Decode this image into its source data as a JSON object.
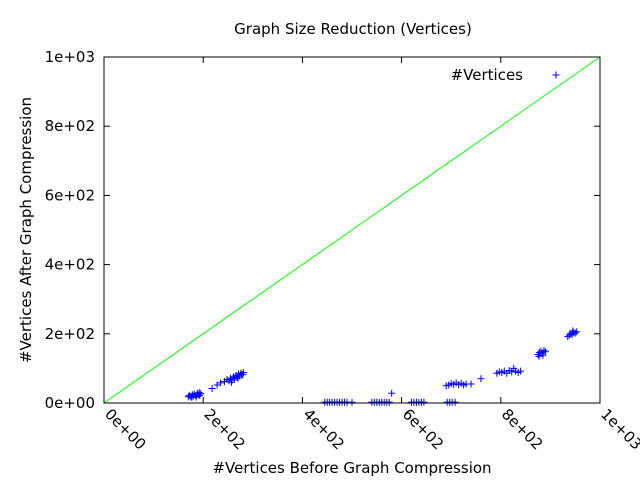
{
  "chart_data": {
    "type": "scatter",
    "title": "Graph Size Reduction (Vertices)",
    "xlabel": "#Vertices Before Graph Compression",
    "ylabel": "#Vertices After Graph Compression",
    "xlim": [
      0,
      1000
    ],
    "ylim": [
      0,
      1000
    ],
    "xticks": [
      0,
      200,
      400,
      600,
      800,
      1000
    ],
    "xtick_labels": [
      "0e+00",
      "2e+02",
      "4e+02",
      "6e+02",
      "8e+02",
      "1e+03"
    ],
    "yticks": [
      0,
      200,
      400,
      600,
      800,
      1000
    ],
    "ytick_labels": [
      "0e+00",
      "2e+02",
      "4e+02",
      "6e+02",
      "8e+02",
      "1e+03"
    ],
    "grid": false,
    "legend_position": "top-right",
    "colors": {
      "series": "#0000ff",
      "reference": "#00ff00"
    },
    "reference_line": {
      "x": [
        0,
        1000
      ],
      "y": [
        0,
        1000
      ]
    },
    "series": [
      {
        "name": "#Vertices",
        "marker": "+",
        "points": [
          [
            170,
            18
          ],
          [
            172,
            22
          ],
          [
            175,
            19
          ],
          [
            178,
            24
          ],
          [
            180,
            20
          ],
          [
            182,
            26
          ],
          [
            185,
            21
          ],
          [
            188,
            28
          ],
          [
            190,
            24
          ],
          [
            193,
            22
          ],
          [
            195,
            27
          ],
          [
            177,
            16
          ],
          [
            186,
            17
          ],
          [
            192,
            30
          ],
          [
            218,
            42
          ],
          [
            228,
            52
          ],
          [
            235,
            58
          ],
          [
            243,
            62
          ],
          [
            248,
            68
          ],
          [
            252,
            64
          ],
          [
            255,
            72
          ],
          [
            258,
            66
          ],
          [
            261,
            76
          ],
          [
            263,
            70
          ],
          [
            266,
            80
          ],
          [
            268,
            74
          ],
          [
            271,
            84
          ],
          [
            273,
            78
          ],
          [
            276,
            86
          ],
          [
            278,
            82
          ],
          [
            281,
            88
          ],
          [
            257,
            60
          ],
          [
            270,
            72
          ],
          [
            280,
            82
          ],
          [
            445,
            2
          ],
          [
            450,
            2
          ],
          [
            455,
            2
          ],
          [
            460,
            2
          ],
          [
            465,
            2
          ],
          [
            470,
            2
          ],
          [
            475,
            2
          ],
          [
            480,
            2
          ],
          [
            485,
            2
          ],
          [
            490,
            2
          ],
          [
            500,
            2
          ],
          [
            540,
            2
          ],
          [
            545,
            2
          ],
          [
            550,
            2
          ],
          [
            555,
            2
          ],
          [
            560,
            2
          ],
          [
            565,
            2
          ],
          [
            570,
            2
          ],
          [
            575,
            2
          ],
          [
            580,
            28
          ],
          [
            620,
            2
          ],
          [
            625,
            2
          ],
          [
            630,
            2
          ],
          [
            635,
            2
          ],
          [
            640,
            2
          ],
          [
            645,
            2
          ],
          [
            690,
            50
          ],
          [
            695,
            52
          ],
          [
            700,
            56
          ],
          [
            705,
            54
          ],
          [
            710,
            58
          ],
          [
            715,
            53
          ],
          [
            720,
            57
          ],
          [
            725,
            52
          ],
          [
            730,
            55
          ],
          [
            740,
            55
          ],
          [
            692,
            2
          ],
          [
            697,
            2
          ],
          [
            702,
            2
          ],
          [
            708,
            2
          ],
          [
            760,
            70
          ],
          [
            792,
            86
          ],
          [
            797,
            90
          ],
          [
            802,
            88
          ],
          [
            807,
            92
          ],
          [
            812,
            86
          ],
          [
            817,
            94
          ],
          [
            822,
            90
          ],
          [
            826,
            100
          ],
          [
            830,
            92
          ],
          [
            835,
            88
          ],
          [
            840,
            92
          ],
          [
            875,
            140
          ],
          [
            878,
            146
          ],
          [
            881,
            150
          ],
          [
            884,
            144
          ],
          [
            887,
            152
          ],
          [
            890,
            148
          ],
          [
            877,
            135
          ],
          [
            885,
            138
          ],
          [
            935,
            192
          ],
          [
            938,
            196
          ],
          [
            941,
            200
          ],
          [
            944,
            198
          ],
          [
            947,
            204
          ],
          [
            950,
            202
          ],
          [
            953,
            206
          ],
          [
            945,
            208
          ]
        ]
      }
    ]
  }
}
